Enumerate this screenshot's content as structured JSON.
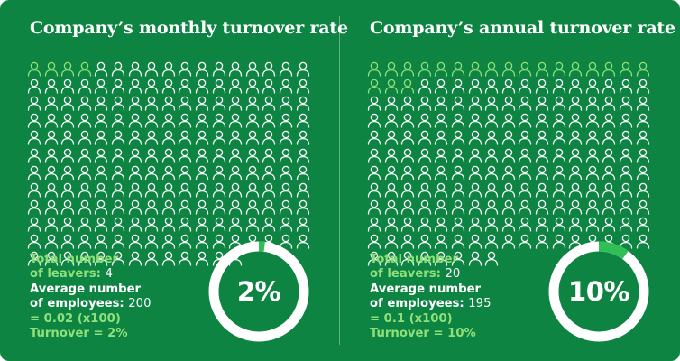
{
  "colors": {
    "background": "#0e8443",
    "highlight": "#8fe07a",
    "icon_outline": "#ffffff",
    "ring_track": "#ffffff",
    "ring_fill": "#2fbf55"
  },
  "panels": [
    {
      "title": "Company’s monthly turnover rate",
      "people_grid": {
        "columns": 17,
        "total": 200,
        "leavers": 4
      },
      "stats": {
        "leavers_label_1": "Total number",
        "leavers_label_2": "of leavers: ",
        "leavers_value": "4",
        "avg_label_1": "Average number",
        "avg_label_2": "of employees: ",
        "avg_value": "200",
        "ratio": "= 0.02 (x100)",
        "turnover": "Turnover = 2%"
      },
      "donut": {
        "percent_value": 2,
        "label": "2%"
      }
    },
    {
      "title": "Company’s annual turnover rate",
      "people_grid": {
        "columns": 17,
        "total": 195,
        "leavers": 20
      },
      "stats": {
        "leavers_label_1": "Total number",
        "leavers_label_2": "of leavers: ",
        "leavers_value": "20",
        "avg_label_1": "Average number",
        "avg_label_2": "of employees: ",
        "avg_value": "195",
        "ratio": "= 0.1 (x100)",
        "turnover": "Turnover = 10%"
      },
      "donut": {
        "percent_value": 10,
        "label": "10%"
      }
    }
  ]
}
